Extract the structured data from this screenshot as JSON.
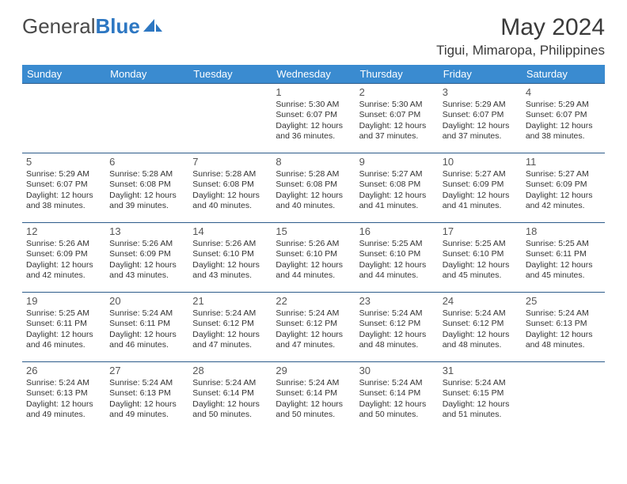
{
  "brand": {
    "part1": "General",
    "part2": "Blue"
  },
  "title": "May 2024",
  "location": "Tigui, Mimaropa, Philippines",
  "colors": {
    "header_bg": "#3a8bd0",
    "header_text": "#ffffff",
    "cell_border": "#2d5b8a",
    "text": "#333333",
    "daynum": "#555555",
    "brand_gray": "#4a4a4a",
    "brand_blue": "#2d77c2",
    "page_bg": "#ffffff"
  },
  "fonts": {
    "title_size_pt": 22,
    "location_size_pt": 13,
    "dayheader_size_pt": 10,
    "cell_size_pt": 8
  },
  "day_headers": [
    "Sunday",
    "Monday",
    "Tuesday",
    "Wednesday",
    "Thursday",
    "Friday",
    "Saturday"
  ],
  "weeks": [
    [
      null,
      null,
      null,
      {
        "n": "1",
        "sr": "Sunrise: 5:30 AM",
        "ss": "Sunset: 6:07 PM",
        "d1": "Daylight: 12 hours",
        "d2": "and 36 minutes."
      },
      {
        "n": "2",
        "sr": "Sunrise: 5:30 AM",
        "ss": "Sunset: 6:07 PM",
        "d1": "Daylight: 12 hours",
        "d2": "and 37 minutes."
      },
      {
        "n": "3",
        "sr": "Sunrise: 5:29 AM",
        "ss": "Sunset: 6:07 PM",
        "d1": "Daylight: 12 hours",
        "d2": "and 37 minutes."
      },
      {
        "n": "4",
        "sr": "Sunrise: 5:29 AM",
        "ss": "Sunset: 6:07 PM",
        "d1": "Daylight: 12 hours",
        "d2": "and 38 minutes."
      }
    ],
    [
      {
        "n": "5",
        "sr": "Sunrise: 5:29 AM",
        "ss": "Sunset: 6:07 PM",
        "d1": "Daylight: 12 hours",
        "d2": "and 38 minutes."
      },
      {
        "n": "6",
        "sr": "Sunrise: 5:28 AM",
        "ss": "Sunset: 6:08 PM",
        "d1": "Daylight: 12 hours",
        "d2": "and 39 minutes."
      },
      {
        "n": "7",
        "sr": "Sunrise: 5:28 AM",
        "ss": "Sunset: 6:08 PM",
        "d1": "Daylight: 12 hours",
        "d2": "and 40 minutes."
      },
      {
        "n": "8",
        "sr": "Sunrise: 5:28 AM",
        "ss": "Sunset: 6:08 PM",
        "d1": "Daylight: 12 hours",
        "d2": "and 40 minutes."
      },
      {
        "n": "9",
        "sr": "Sunrise: 5:27 AM",
        "ss": "Sunset: 6:08 PM",
        "d1": "Daylight: 12 hours",
        "d2": "and 41 minutes."
      },
      {
        "n": "10",
        "sr": "Sunrise: 5:27 AM",
        "ss": "Sunset: 6:09 PM",
        "d1": "Daylight: 12 hours",
        "d2": "and 41 minutes."
      },
      {
        "n": "11",
        "sr": "Sunrise: 5:27 AM",
        "ss": "Sunset: 6:09 PM",
        "d1": "Daylight: 12 hours",
        "d2": "and 42 minutes."
      }
    ],
    [
      {
        "n": "12",
        "sr": "Sunrise: 5:26 AM",
        "ss": "Sunset: 6:09 PM",
        "d1": "Daylight: 12 hours",
        "d2": "and 42 minutes."
      },
      {
        "n": "13",
        "sr": "Sunrise: 5:26 AM",
        "ss": "Sunset: 6:09 PM",
        "d1": "Daylight: 12 hours",
        "d2": "and 43 minutes."
      },
      {
        "n": "14",
        "sr": "Sunrise: 5:26 AM",
        "ss": "Sunset: 6:10 PM",
        "d1": "Daylight: 12 hours",
        "d2": "and 43 minutes."
      },
      {
        "n": "15",
        "sr": "Sunrise: 5:26 AM",
        "ss": "Sunset: 6:10 PM",
        "d1": "Daylight: 12 hours",
        "d2": "and 44 minutes."
      },
      {
        "n": "16",
        "sr": "Sunrise: 5:25 AM",
        "ss": "Sunset: 6:10 PM",
        "d1": "Daylight: 12 hours",
        "d2": "and 44 minutes."
      },
      {
        "n": "17",
        "sr": "Sunrise: 5:25 AM",
        "ss": "Sunset: 6:10 PM",
        "d1": "Daylight: 12 hours",
        "d2": "and 45 minutes."
      },
      {
        "n": "18",
        "sr": "Sunrise: 5:25 AM",
        "ss": "Sunset: 6:11 PM",
        "d1": "Daylight: 12 hours",
        "d2": "and 45 minutes."
      }
    ],
    [
      {
        "n": "19",
        "sr": "Sunrise: 5:25 AM",
        "ss": "Sunset: 6:11 PM",
        "d1": "Daylight: 12 hours",
        "d2": "and 46 minutes."
      },
      {
        "n": "20",
        "sr": "Sunrise: 5:24 AM",
        "ss": "Sunset: 6:11 PM",
        "d1": "Daylight: 12 hours",
        "d2": "and 46 minutes."
      },
      {
        "n": "21",
        "sr": "Sunrise: 5:24 AM",
        "ss": "Sunset: 6:12 PM",
        "d1": "Daylight: 12 hours",
        "d2": "and 47 minutes."
      },
      {
        "n": "22",
        "sr": "Sunrise: 5:24 AM",
        "ss": "Sunset: 6:12 PM",
        "d1": "Daylight: 12 hours",
        "d2": "and 47 minutes."
      },
      {
        "n": "23",
        "sr": "Sunrise: 5:24 AM",
        "ss": "Sunset: 6:12 PM",
        "d1": "Daylight: 12 hours",
        "d2": "and 48 minutes."
      },
      {
        "n": "24",
        "sr": "Sunrise: 5:24 AM",
        "ss": "Sunset: 6:12 PM",
        "d1": "Daylight: 12 hours",
        "d2": "and 48 minutes."
      },
      {
        "n": "25",
        "sr": "Sunrise: 5:24 AM",
        "ss": "Sunset: 6:13 PM",
        "d1": "Daylight: 12 hours",
        "d2": "and 48 minutes."
      }
    ],
    [
      {
        "n": "26",
        "sr": "Sunrise: 5:24 AM",
        "ss": "Sunset: 6:13 PM",
        "d1": "Daylight: 12 hours",
        "d2": "and 49 minutes."
      },
      {
        "n": "27",
        "sr": "Sunrise: 5:24 AM",
        "ss": "Sunset: 6:13 PM",
        "d1": "Daylight: 12 hours",
        "d2": "and 49 minutes."
      },
      {
        "n": "28",
        "sr": "Sunrise: 5:24 AM",
        "ss": "Sunset: 6:14 PM",
        "d1": "Daylight: 12 hours",
        "d2": "and 50 minutes."
      },
      {
        "n": "29",
        "sr": "Sunrise: 5:24 AM",
        "ss": "Sunset: 6:14 PM",
        "d1": "Daylight: 12 hours",
        "d2": "and 50 minutes."
      },
      {
        "n": "30",
        "sr": "Sunrise: 5:24 AM",
        "ss": "Sunset: 6:14 PM",
        "d1": "Daylight: 12 hours",
        "d2": "and 50 minutes."
      },
      {
        "n": "31",
        "sr": "Sunrise: 5:24 AM",
        "ss": "Sunset: 6:15 PM",
        "d1": "Daylight: 12 hours",
        "d2": "and 51 minutes."
      },
      null
    ]
  ]
}
